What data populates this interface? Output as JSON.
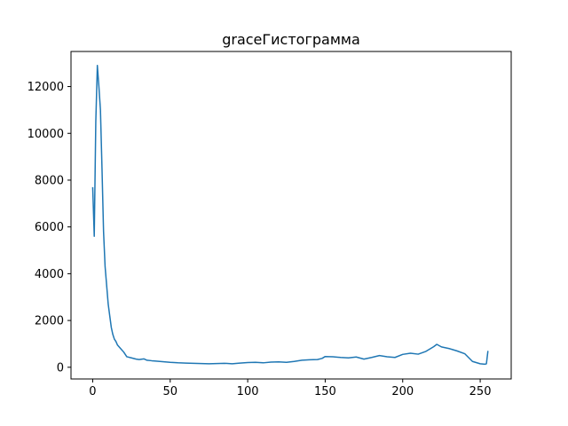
{
  "chart_data": {
    "type": "line",
    "title": "graceГистограмма",
    "xlabel": "",
    "ylabel": "",
    "xlim": [
      -14,
      270
    ],
    "ylim": [
      -500,
      13500
    ],
    "xticks": [
      0,
      50,
      100,
      150,
      200,
      250
    ],
    "yticks": [
      0,
      2000,
      4000,
      6000,
      8000,
      10000,
      12000
    ],
    "grid": false,
    "legend": "none",
    "series_color": "#1f77b4",
    "series": [
      {
        "x": [
          0,
          1,
          2,
          3,
          4,
          5,
          6,
          7,
          8,
          9,
          10,
          11,
          12,
          13,
          14,
          15,
          16,
          18,
          20,
          22,
          25,
          28,
          30,
          33,
          35,
          38,
          40,
          45,
          50,
          55,
          60,
          65,
          70,
          75,
          80,
          85,
          90,
          95,
          100,
          105,
          110,
          115,
          120,
          125,
          130,
          135,
          140,
          145,
          148,
          150,
          155,
          160,
          165,
          170,
          175,
          180,
          185,
          190,
          195,
          200,
          205,
          210,
          215,
          220,
          222,
          225,
          230,
          235,
          240,
          245,
          250,
          253,
          254,
          255
        ],
        "y": [
          7700,
          5600,
          10500,
          12900,
          12000,
          11000,
          8500,
          5800,
          4300,
          3500,
          2700,
          2200,
          1700,
          1400,
          1200,
          1100,
          950,
          800,
          650,
          450,
          400,
          350,
          330,
          360,
          300,
          280,
          270,
          240,
          210,
          190,
          180,
          170,
          160,
          150,
          160,
          170,
          150,
          180,
          200,
          210,
          190,
          220,
          230,
          210,
          250,
          300,
          320,
          330,
          380,
          460,
          450,
          420,
          400,
          440,
          350,
          420,
          500,
          450,
          420,
          550,
          600,
          560,
          680,
          880,
          980,
          870,
          800,
          700,
          580,
          250,
          150,
          130,
          150,
          700
        ]
      }
    ]
  }
}
